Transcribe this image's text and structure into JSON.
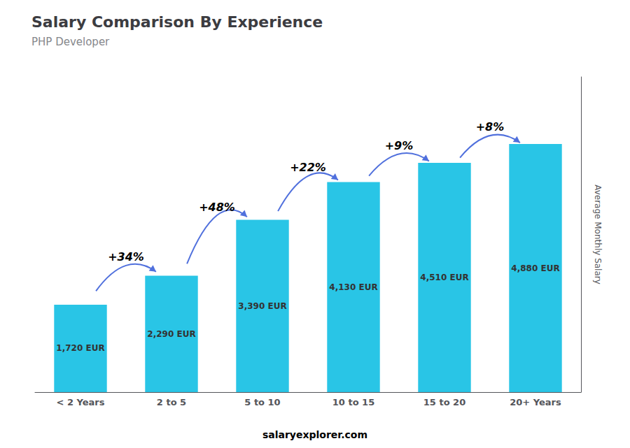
{
  "chart_data": {
    "type": "bar",
    "title": "Salary Comparison By Experience",
    "subtitle": "PHP Developer",
    "categories": [
      "< 2 Years",
      "2 to 5",
      "5 to 10",
      "10 to 15",
      "15 to 20",
      "20+ Years"
    ],
    "values": [
      1720,
      2290,
      3390,
      4130,
      4510,
      4880
    ],
    "value_labels": [
      "1,720 EUR",
      "2,290 EUR",
      "3,390 EUR",
      "4,130 EUR",
      "4,510 EUR",
      "4,880 EUR"
    ],
    "data_labels": true,
    "color": "#29c5e6",
    "ylabel": "Average Monthly Salary",
    "annotations": [
      "+34%",
      "+48%",
      "+22%",
      "+9%",
      "+8%"
    ],
    "footer": "salaryexplorer.com",
    "ylim": [
      0,
      6200
    ],
    "grid": false,
    "tick_labels": "x"
  }
}
